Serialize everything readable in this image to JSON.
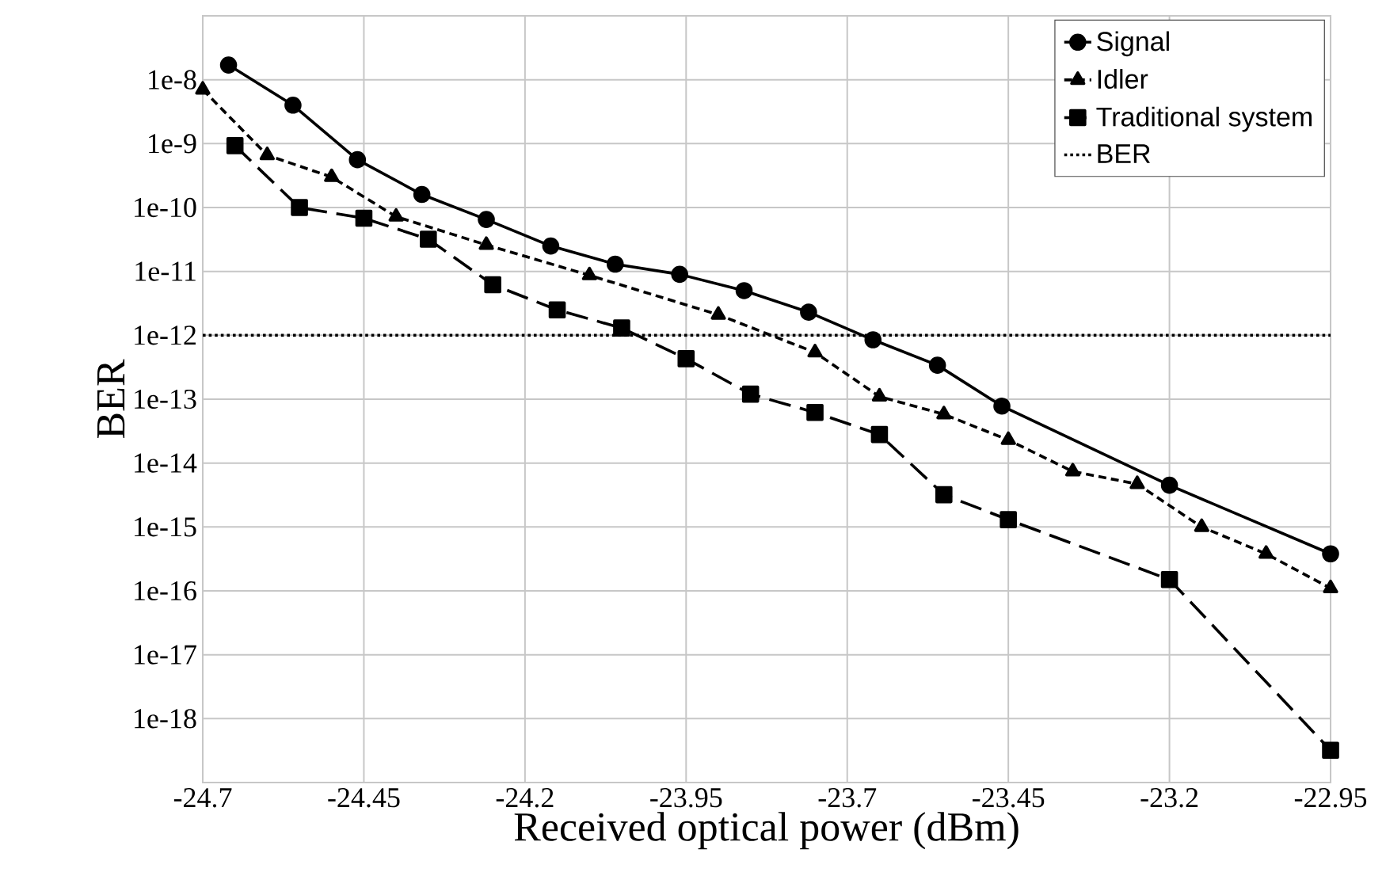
{
  "chart_data": {
    "type": "line",
    "xlabel": "Received optical power (dBm)",
    "ylabel": "BER",
    "log": "y",
    "grid": true,
    "legend": "top right",
    "xlim": [
      -24.7,
      -22.95
    ],
    "xticks": [
      -24.7,
      -24.45,
      -24.2,
      -23.95,
      -23.7,
      -23.45,
      -23.2,
      -22.95
    ],
    "ylim": [
      1e-19,
      1e-07
    ],
    "yticks": [
      {
        "value": 1e-08,
        "label": "1e-8"
      },
      {
        "value": 1e-09,
        "label": "1e-9"
      },
      {
        "value": 1e-10,
        "label": "1e-10"
      },
      {
        "value": 1e-11,
        "label": "1e-11"
      },
      {
        "value": 1e-12,
        "label": "1e-12"
      },
      {
        "value": 1e-13,
        "label": "1e-13"
      },
      {
        "value": 1e-14,
        "label": "1e-14"
      },
      {
        "value": 1e-15,
        "label": "1e-15"
      },
      {
        "value": 1e-16,
        "label": "1e-16"
      },
      {
        "value": 1e-17,
        "label": "1e-17"
      },
      {
        "value": 1e-18,
        "label": "1e-18"
      }
    ],
    "series": [
      {
        "name": "Signal",
        "color": "#000000",
        "marker": "circle",
        "line_style": "solid",
        "x": [
          -24.66,
          -24.56,
          -24.46,
          -24.36,
          -24.26,
          -24.16,
          -24.06,
          -23.96,
          -23.86,
          -23.76,
          -23.66,
          -23.56,
          -23.46,
          -23.2,
          -22.95
        ],
        "values": [
          1.7e-08,
          4e-09,
          5.6e-10,
          1.6e-10,
          6.5e-11,
          2.5e-11,
          1.3e-11,
          9e-12,
          5e-12,
          2.3e-12,
          8.5e-13,
          3.4e-13,
          7.8e-14,
          4.5e-15,
          3.8e-16
        ]
      },
      {
        "name": "Idler",
        "color": "#000000",
        "marker": "triangle",
        "line_style": "dashed",
        "x": [
          -24.7,
          -24.6,
          -24.5,
          -24.4,
          -24.26,
          -24.1,
          -23.9,
          -23.75,
          -23.65,
          -23.55,
          -23.45,
          -23.35,
          -23.25,
          -23.15,
          -23.05,
          -22.95
        ],
        "values": [
          7e-09,
          6.6e-10,
          3e-10,
          7.2e-11,
          2.6e-11,
          8.7e-12,
          2.1e-12,
          5.4e-13,
          1.1e-13,
          5.8e-14,
          2.3e-14,
          7.4e-15,
          4.7e-15,
          1e-15,
          3.8e-16,
          1.1e-16
        ]
      },
      {
        "name": "Traditional system",
        "color": "#000000",
        "marker": "square",
        "line_style": "dashed",
        "x": [
          -24.65,
          -24.55,
          -24.45,
          -24.35,
          -24.25,
          -24.15,
          -24.05,
          -23.95,
          -23.85,
          -23.75,
          -23.65,
          -23.55,
          -23.45,
          -23.2,
          -22.95
        ],
        "values": [
          9.3e-10,
          1e-10,
          6.8e-11,
          3.2e-11,
          6.2e-12,
          2.5e-12,
          1.3e-12,
          4.3e-13,
          1.2e-13,
          6.2e-14,
          2.8e-14,
          3.2e-15,
          1.3e-15,
          1.5e-16,
          3.2e-19
        ]
      }
    ],
    "ref_lines": [
      {
        "axis": "y",
        "value": 1e-12,
        "label": "BER",
        "color": "#000000",
        "line_style": "dotted"
      }
    ]
  }
}
